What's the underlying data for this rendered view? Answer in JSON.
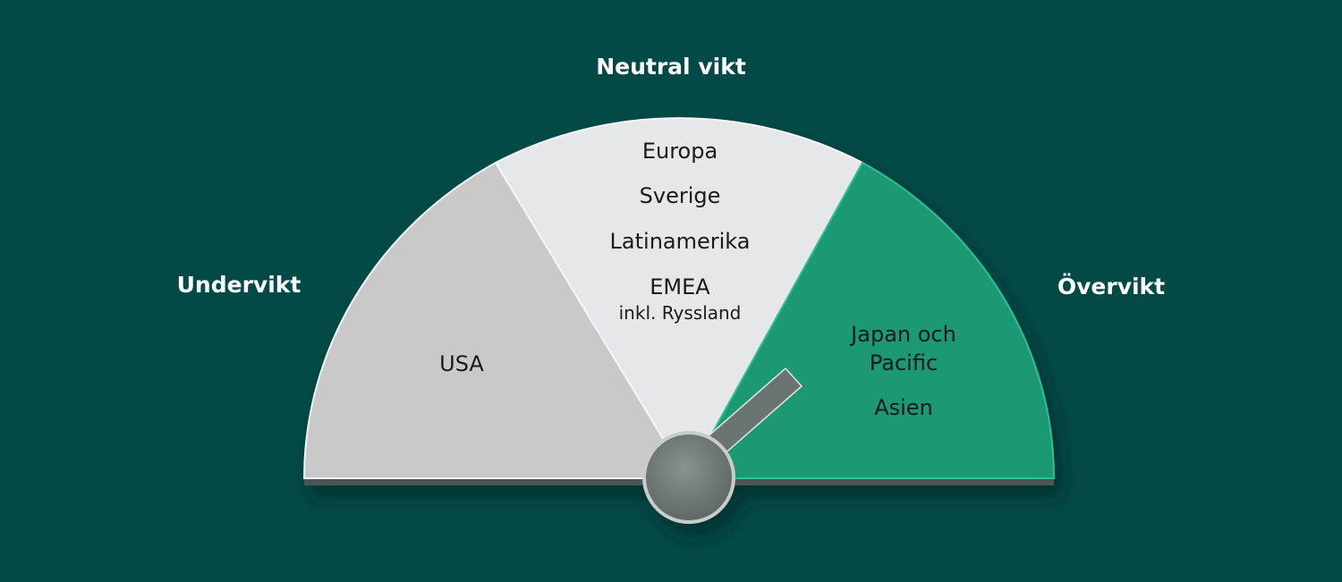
{
  "zones": {
    "under": {
      "label": "Undervikt",
      "color": "#c8c9c8",
      "items": [
        "USA"
      ]
    },
    "neutral": {
      "label": "Neutral vikt",
      "color": "#e6e7e8",
      "items": [
        "Europa",
        "Sverige",
        "Latinamerika",
        "EMEA",
        "inkl. Ryssland"
      ]
    },
    "over": {
      "label": "Övervikt",
      "color": "#1f9874",
      "items": [
        "Japan och",
        "Pacific",
        "Asien"
      ]
    }
  },
  "needle": {
    "position": "over",
    "color": "#6b7572"
  },
  "background": "#034a47"
}
